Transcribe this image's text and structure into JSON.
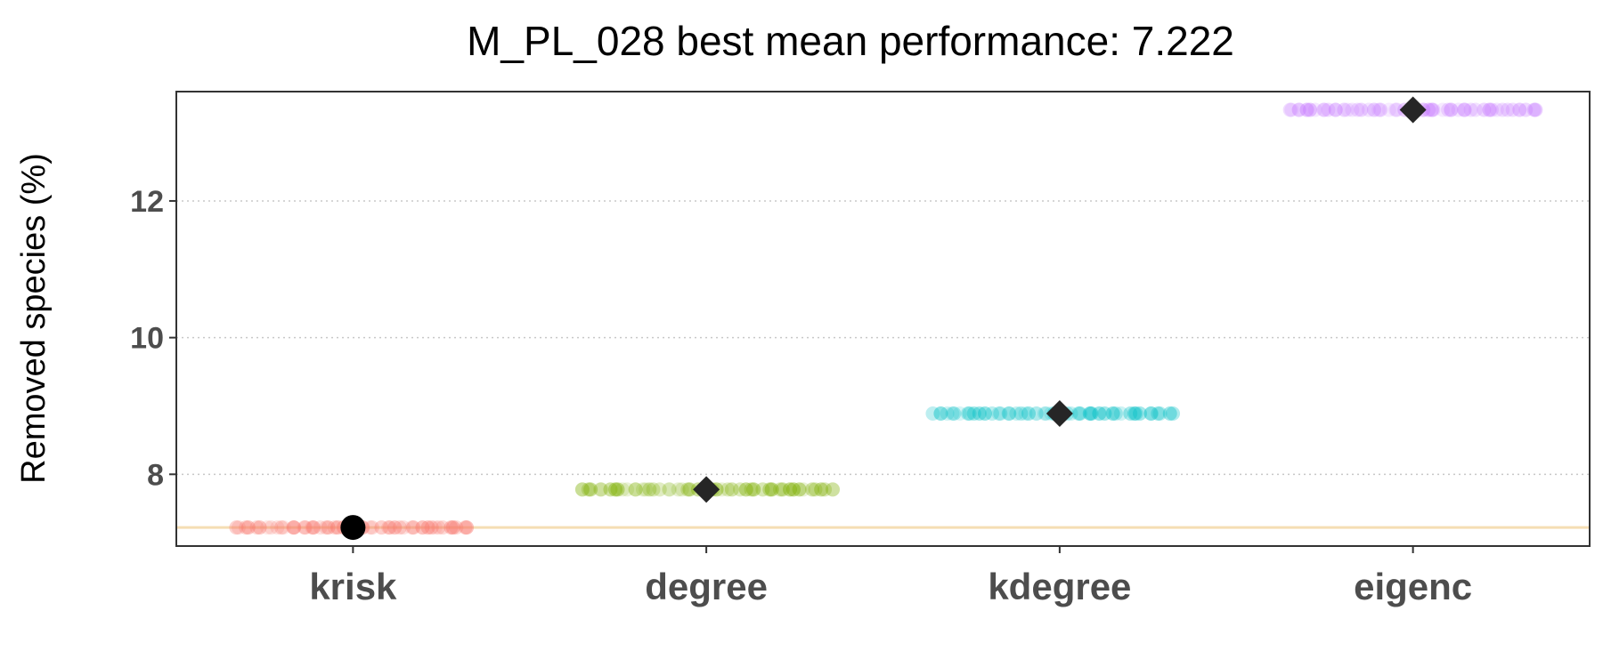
{
  "chart_data": {
    "type": "scatter",
    "title": "M_PL_028 best mean performance: 7.222",
    "ylabel": "Removed species (%)",
    "xlabel": "",
    "categories": [
      "krisk",
      "degree",
      "kdegree",
      "eigenc"
    ],
    "ylim": [
      6.95,
      13.6
    ],
    "yticks": [
      8,
      10,
      12
    ],
    "grid": "horizontal dotted at y ticks",
    "reference_line": {
      "y": 7.222,
      "color": "#f5deb3"
    },
    "series": [
      {
        "category": "krisk",
        "value": 7.222,
        "color": "#f8766d",
        "mean_marker": "circle",
        "spread": [
          -0.33,
          0.33
        ]
      },
      {
        "category": "degree",
        "value": 7.778,
        "color": "#7cae00",
        "mean_marker": "diamond",
        "spread": [
          -0.35,
          0.35
        ]
      },
      {
        "category": "kdegree",
        "value": 8.889,
        "color": "#00bfc4",
        "mean_marker": "diamond",
        "spread": [
          -0.35,
          0.32
        ]
      },
      {
        "category": "eigenc",
        "value": 13.333,
        "color": "#c77cff",
        "mean_marker": "diamond",
        "spread": [
          -0.35,
          0.35
        ]
      }
    ],
    "mean_marker_colors": {
      "circle": "#000000",
      "diamond": "#262626"
    }
  }
}
